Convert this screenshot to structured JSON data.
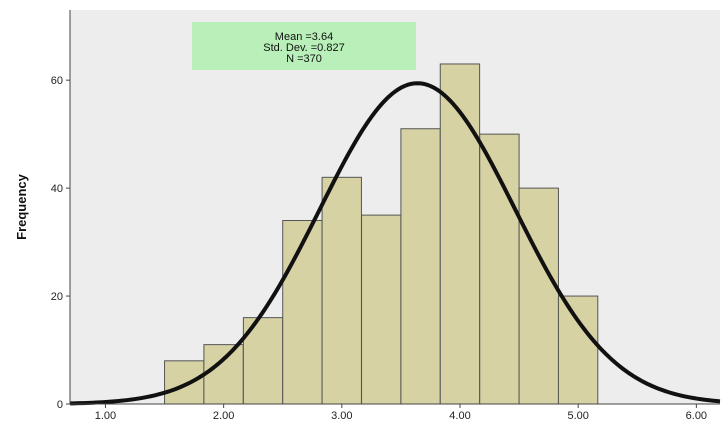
{
  "chart_data": {
    "type": "histogram",
    "ylabel": "Frequency",
    "xlim": [
      0.7,
      6.2
    ],
    "ylim": [
      0,
      73
    ],
    "x_ticks": [
      "1.00",
      "2.00",
      "3.00",
      "4.00",
      "5.00",
      "6.00"
    ],
    "x_tick_values": [
      1,
      2,
      3,
      4,
      5,
      6
    ],
    "y_ticks": [
      "0",
      "20",
      "40",
      "60"
    ],
    "y_tick_values": [
      0,
      20,
      40,
      60
    ],
    "bin_width": 0.333,
    "bins": [
      {
        "start": 1.5,
        "count": 8
      },
      {
        "start": 1.833,
        "count": 11
      },
      {
        "start": 2.167,
        "count": 16
      },
      {
        "start": 2.5,
        "count": 34
      },
      {
        "start": 2.833,
        "count": 42
      },
      {
        "start": 3.167,
        "count": 35
      },
      {
        "start": 3.5,
        "count": 51
      },
      {
        "start": 3.833,
        "count": 63
      },
      {
        "start": 4.167,
        "count": 50
      },
      {
        "start": 4.5,
        "count": 40
      },
      {
        "start": 4.833,
        "count": 20
      }
    ],
    "normal_curve": {
      "mean": 3.64,
      "sd": 0.827,
      "n": 370
    },
    "stats_box": {
      "line1": "Mean =3.64",
      "line2": "Std. Dev. =0.827",
      "line3": "N =370"
    },
    "colors": {
      "plot_background": "#ededed",
      "bar_fill": "#d6d2a4",
      "bar_stroke": "#555555",
      "curve": "#111111",
      "stats_box": "#b9f0b9"
    }
  }
}
